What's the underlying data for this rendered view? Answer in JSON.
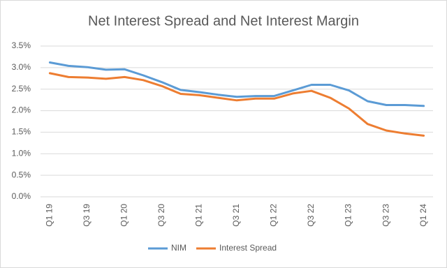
{
  "chart_data": {
    "type": "line",
    "title": "Net Interest Spread and Net Interest Margin",
    "categories": [
      "Q1 19",
      null,
      "Q3 19",
      null,
      "Q1 20",
      null,
      "Q3 20",
      null,
      "Q1 21",
      null,
      "Q3 21",
      null,
      "Q1 22",
      null,
      "Q3 22",
      null,
      "Q1 23",
      null,
      "Q3 23",
      null,
      "Q1 24"
    ],
    "series": [
      {
        "name": "NIM",
        "color": "#5b9bd5",
        "values": [
          3.12,
          3.04,
          3.01,
          2.95,
          2.96,
          2.82,
          2.66,
          2.48,
          2.43,
          2.37,
          2.32,
          2.34,
          2.34,
          2.47,
          2.6,
          2.6,
          2.47,
          2.22,
          2.13,
          2.13,
          2.11
        ]
      },
      {
        "name": "Interest Spread",
        "color": "#ed7d31",
        "values": [
          2.87,
          2.78,
          2.77,
          2.74,
          2.78,
          2.71,
          2.57,
          2.39,
          2.36,
          2.3,
          2.24,
          2.28,
          2.28,
          2.4,
          2.46,
          2.3,
          2.05,
          1.69,
          1.54,
          1.47,
          1.42
        ]
      }
    ],
    "ylim": [
      0,
      3.5
    ],
    "yticks": [
      {
        "value": 0,
        "label": "0.0%"
      },
      {
        "value": 0.5,
        "label": "0.5%"
      },
      {
        "value": 1,
        "label": "1.0%"
      },
      {
        "value": 1.5,
        "label": "1.5%"
      },
      {
        "value": 2,
        "label": "2.0%"
      },
      {
        "value": 2.5,
        "label": "2.5%"
      },
      {
        "value": 3,
        "label": "3.0%"
      },
      {
        "value": 3.5,
        "label": "3.5%"
      }
    ],
    "grid": true,
    "legend": "bottom"
  }
}
